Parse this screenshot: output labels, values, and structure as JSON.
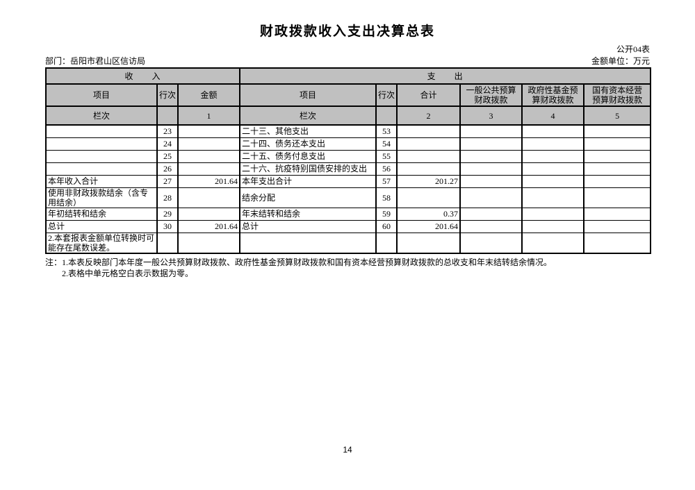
{
  "page": {
    "title": "财政拨款收入支出决算总表",
    "form_code": "公开04表",
    "department_label": "部门：岳阳市君山区信访局",
    "unit_label": "金额单位：万元",
    "page_number": "14"
  },
  "table": {
    "sections": {
      "income": "收　　入",
      "expenditure": "支　　出"
    },
    "column_headers": [
      "项目",
      "行次",
      "金额",
      "项目",
      "行次",
      "合计",
      "一般公共预算\n财政拨款",
      "政府性基金预\n算财政拨款",
      "国有资本经营\n预算财政拨款"
    ],
    "column_index_row": [
      "栏次",
      "",
      "1",
      "栏次",
      "",
      "2",
      "3",
      "4",
      "5"
    ],
    "rows": [
      [
        "",
        "23",
        "",
        "二十三、其他支出",
        "53",
        "",
        "",
        "",
        ""
      ],
      [
        "",
        "24",
        "",
        "二十四、债务还本支出",
        "54",
        "",
        "",
        "",
        ""
      ],
      [
        "",
        "25",
        "",
        "二十五、债务付息支出",
        "55",
        "",
        "",
        "",
        ""
      ],
      [
        "",
        "26",
        "",
        "二十六、抗疫特别国债安排的支出",
        "56",
        "",
        "",
        "",
        ""
      ],
      [
        "本年收入合计",
        "27",
        "201.64",
        "本年支出合计",
        "57",
        "201.27",
        "",
        "",
        ""
      ],
      [
        "使用非财政拨款结余（含专用结余）",
        "28",
        "",
        "结余分配",
        "58",
        "",
        "",
        "",
        ""
      ],
      [
        "年初结转和结余",
        "29",
        "",
        "年末结转和结余",
        "59",
        "0.37",
        "",
        "",
        ""
      ],
      [
        "总计",
        "30",
        "201.64",
        "总计",
        "60",
        "201.64",
        "",
        "",
        ""
      ],
      [
        "2.本套报表金额单位转换时可能存在尾数误差。",
        "",
        "",
        "",
        "",
        "",
        "",
        "",
        ""
      ]
    ],
    "notes": [
      "注：1.本表反映部门本年度一般公共预算财政拨款、政府性基金预算财政拨款和国有资本经营预算财政拨款的总收支和年末结转结余情况。",
      "2.表格中单元格空白表示数据为零。"
    ]
  },
  "colors": {
    "header_bg": "#c0c0c0",
    "border": "#000000",
    "text": "#000000"
  }
}
